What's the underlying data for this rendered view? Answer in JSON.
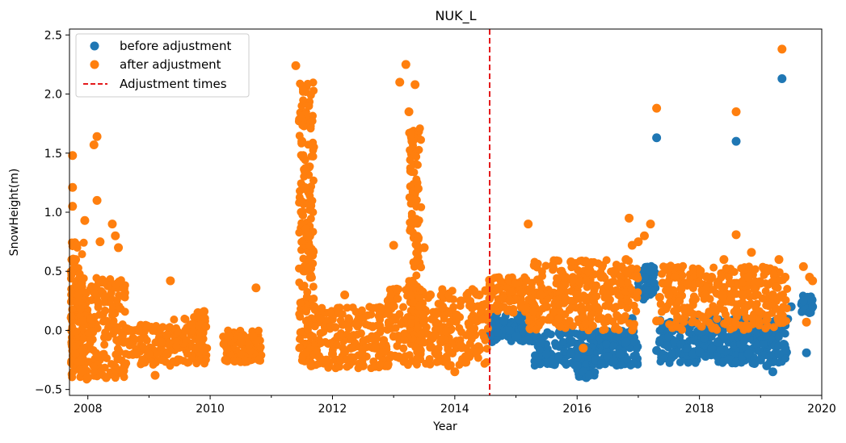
{
  "chart_data": {
    "type": "scatter",
    "title": "NUK_L",
    "xlabel": "Year",
    "ylabel": "SnowHeight(m)",
    "xlim": [
      2007.7,
      2020.0
    ],
    "ylim": [
      -0.55,
      2.55
    ],
    "x_ticks": [
      2008,
      2010,
      2012,
      2014,
      2016,
      2018,
      2020
    ],
    "x_tick_labels": [
      "2008",
      "2010",
      "2012",
      "2014",
      "2016",
      "2018",
      "2020"
    ],
    "y_ticks": [
      -0.5,
      0.0,
      0.5,
      1.0,
      1.5,
      2.0,
      2.5
    ],
    "y_tick_labels": [
      "−0.5",
      "0.0",
      "0.5",
      "1.0",
      "1.5",
      "2.0",
      "2.5"
    ],
    "legend_position": "top-left",
    "grid": false,
    "series": [
      {
        "name": "before adjustment",
        "color": "#1f77b4",
        "marker": "circle",
        "points": [
          [
            2014.6,
            0.05
          ],
          [
            2014.7,
            -0.02
          ],
          [
            2014.8,
            0.08
          ],
          [
            2014.9,
            0.0
          ],
          [
            2015.0,
            -0.05
          ],
          [
            2015.1,
            0.02
          ],
          [
            2015.2,
            -0.08
          ],
          [
            2015.3,
            0.05
          ],
          [
            2015.4,
            -0.1
          ],
          [
            2015.5,
            -0.2
          ],
          [
            2015.6,
            -0.25
          ],
          [
            2015.7,
            -0.22
          ],
          [
            2015.8,
            -0.27
          ],
          [
            2015.9,
            -0.2
          ],
          [
            2016.0,
            -0.3
          ],
          [
            2016.1,
            -0.35
          ],
          [
            2016.15,
            -0.4
          ],
          [
            2016.2,
            -0.38
          ],
          [
            2016.3,
            -0.25
          ],
          [
            2016.4,
            -0.28
          ],
          [
            2016.5,
            -0.22
          ],
          [
            2016.6,
            -0.26
          ],
          [
            2016.7,
            -0.2
          ],
          [
            2016.8,
            -0.1
          ],
          [
            2016.9,
            0.1
          ],
          [
            2017.0,
            0.35
          ],
          [
            2017.1,
            0.45
          ],
          [
            2017.2,
            0.5
          ],
          [
            2017.3,
            1.63
          ],
          [
            2017.3,
            -0.17
          ],
          [
            2017.35,
            -0.1
          ],
          [
            2017.5,
            -0.05
          ],
          [
            2017.6,
            -0.1
          ],
          [
            2017.7,
            -0.12
          ],
          [
            2017.8,
            -0.15
          ],
          [
            2017.9,
            -0.2
          ],
          [
            2018.0,
            -0.18
          ],
          [
            2018.1,
            -0.22
          ],
          [
            2018.2,
            -0.15
          ],
          [
            2018.3,
            -0.1
          ],
          [
            2018.4,
            -0.05
          ],
          [
            2018.5,
            -0.25
          ],
          [
            2018.6,
            -0.27
          ],
          [
            2018.6,
            1.6
          ],
          [
            2018.7,
            -0.22
          ],
          [
            2018.8,
            -0.2
          ],
          [
            2018.9,
            -0.28
          ],
          [
            2019.0,
            -0.25
          ],
          [
            2019.1,
            -0.3
          ],
          [
            2019.2,
            -0.35
          ],
          [
            2019.3,
            -0.2
          ],
          [
            2019.35,
            2.13
          ],
          [
            2019.4,
            0.1
          ],
          [
            2019.5,
            0.2
          ],
          [
            2019.7,
            0.25
          ],
          [
            2019.75,
            0.18
          ],
          [
            2019.75,
            -0.19
          ],
          [
            2019.8,
            0.15
          ],
          [
            2019.85,
            0.2
          ]
        ]
      },
      {
        "name": "after adjustment",
        "color": "#ff7f0e",
        "marker": "circle",
        "points": [
          [
            2007.75,
            1.48
          ],
          [
            2007.75,
            1.21
          ],
          [
            2007.75,
            1.05
          ],
          [
            2007.8,
            0.6
          ],
          [
            2007.85,
            0.3
          ],
          [
            2007.9,
            -0.35
          ],
          [
            2007.95,
            0.93
          ],
          [
            2008.0,
            -0.4
          ],
          [
            2008.05,
            0.1
          ],
          [
            2008.1,
            1.57
          ],
          [
            2008.15,
            1.64
          ],
          [
            2008.15,
            1.1
          ],
          [
            2008.2,
            0.75
          ],
          [
            2008.3,
            -0.4
          ],
          [
            2008.4,
            0.9
          ],
          [
            2008.45,
            0.8
          ],
          [
            2008.5,
            0.7
          ],
          [
            2008.6,
            -0.3
          ],
          [
            2008.7,
            0.0
          ],
          [
            2008.8,
            -0.2
          ],
          [
            2008.9,
            -0.25
          ],
          [
            2009.0,
            -0.2
          ],
          [
            2009.1,
            -0.38
          ],
          [
            2009.2,
            -0.1
          ],
          [
            2009.3,
            -0.2
          ],
          [
            2009.35,
            0.42
          ],
          [
            2009.5,
            -0.25
          ],
          [
            2009.6,
            0.0
          ],
          [
            2009.7,
            0.05
          ],
          [
            2009.8,
            0.15
          ],
          [
            2009.9,
            0.16
          ],
          [
            2010.25,
            -0.25
          ],
          [
            2010.3,
            -0.05
          ],
          [
            2010.4,
            -0.26
          ],
          [
            2010.5,
            -0.1
          ],
          [
            2010.7,
            -0.05
          ],
          [
            2010.75,
            0.36
          ],
          [
            2010.8,
            -0.25
          ],
          [
            2011.4,
            2.24
          ],
          [
            2011.5,
            1.6
          ],
          [
            2011.55,
            1.2
          ],
          [
            2011.6,
            0.8
          ],
          [
            2011.65,
            -0.3
          ],
          [
            2011.7,
            0.2
          ],
          [
            2011.8,
            0.1
          ],
          [
            2011.9,
            -0.25
          ],
          [
            2012.0,
            -0.2
          ],
          [
            2012.1,
            0.15
          ],
          [
            2012.2,
            0.3
          ],
          [
            2012.3,
            -0.15
          ],
          [
            2012.5,
            -0.3
          ],
          [
            2012.7,
            -0.15
          ],
          [
            2012.9,
            -0.3
          ],
          [
            2013.0,
            0.72
          ],
          [
            2013.05,
            0.35
          ],
          [
            2013.1,
            2.1
          ],
          [
            2013.2,
            2.25
          ],
          [
            2013.25,
            1.85
          ],
          [
            2013.3,
            1.6
          ],
          [
            2013.35,
            2.08
          ],
          [
            2013.4,
            1.2
          ],
          [
            2013.5,
            0.7
          ],
          [
            2013.6,
            0.3
          ],
          [
            2013.7,
            -0.2
          ],
          [
            2013.8,
            0.2
          ],
          [
            2013.9,
            -0.3
          ],
          [
            2014.0,
            -0.35
          ],
          [
            2014.1,
            0.25
          ],
          [
            2014.2,
            0.3
          ],
          [
            2014.3,
            0.2
          ],
          [
            2014.4,
            0.3
          ],
          [
            2014.5,
            0.22
          ],
          [
            2014.6,
            0.3
          ],
          [
            2014.7,
            0.35
          ],
          [
            2014.8,
            0.27
          ],
          [
            2014.9,
            0.25
          ],
          [
            2015.0,
            0.4
          ],
          [
            2015.1,
            0.32
          ],
          [
            2015.2,
            0.9
          ],
          [
            2015.3,
            0.55
          ],
          [
            2015.4,
            0.3
          ],
          [
            2015.5,
            0.2
          ],
          [
            2015.6,
            0.55
          ],
          [
            2015.7,
            0.1
          ],
          [
            2015.8,
            0.45
          ],
          [
            2015.9,
            0.58
          ],
          [
            2016.0,
            0.3
          ],
          [
            2016.1,
            -0.15
          ],
          [
            2016.2,
            0.55
          ],
          [
            2016.3,
            0.2
          ],
          [
            2016.4,
            0.1
          ],
          [
            2016.5,
            0.3
          ],
          [
            2016.6,
            0.5
          ],
          [
            2016.7,
            0.4
          ],
          [
            2016.8,
            0.6
          ],
          [
            2016.85,
            0.95
          ],
          [
            2016.9,
            0.72
          ],
          [
            2017.0,
            0.75
          ],
          [
            2017.1,
            0.8
          ],
          [
            2017.2,
            0.9
          ],
          [
            2017.3,
            1.88
          ],
          [
            2017.3,
            0.08
          ],
          [
            2017.35,
            0.28
          ],
          [
            2017.4,
            0.4
          ],
          [
            2017.5,
            0.3
          ],
          [
            2017.6,
            0.45
          ],
          [
            2017.7,
            0.35
          ],
          [
            2017.8,
            0.4
          ],
          [
            2017.9,
            0.25
          ],
          [
            2018.0,
            0.4
          ],
          [
            2018.1,
            0.3
          ],
          [
            2018.2,
            0.45
          ],
          [
            2018.3,
            0.4
          ],
          [
            2018.4,
            0.6
          ],
          [
            2018.5,
            0.4
          ],
          [
            2018.6,
            1.85
          ],
          [
            2018.6,
            0.81
          ],
          [
            2018.7,
            0.3
          ],
          [
            2018.8,
            0.45
          ],
          [
            2018.85,
            0.66
          ],
          [
            2018.9,
            0.35
          ],
          [
            2019.0,
            0.4
          ],
          [
            2019.1,
            0.5
          ],
          [
            2019.2,
            0.3
          ],
          [
            2019.3,
            0.6
          ],
          [
            2019.35,
            2.38
          ],
          [
            2019.4,
            0.45
          ],
          [
            2019.7,
            0.54
          ],
          [
            2019.75,
            0.07
          ],
          [
            2019.8,
            0.45
          ],
          [
            2019.85,
            0.42
          ]
        ],
        "dense_bands": [
          {
            "x": [
              2007.72,
              2008.62
            ],
            "y": [
              -0.42,
              0.45
            ]
          },
          {
            "x": [
              2007.72,
              2007.95
            ],
            "y": [
              -0.4,
              0.75
            ]
          },
          {
            "x": [
              2008.62,
              2009.4
            ],
            "y": [
              -0.3,
              0.05
            ]
          },
          {
            "x": [
              2009.4,
              2009.95
            ],
            "y": [
              -0.28,
              0.12
            ]
          },
          {
            "x": [
              2010.2,
              2010.85
            ],
            "y": [
              -0.27,
              0.0
            ]
          },
          {
            "x": [
              2011.45,
              2011.7
            ],
            "y": [
              -0.3,
              2.15
            ]
          },
          {
            "x": [
              2011.7,
              2012.9
            ],
            "y": [
              -0.32,
              0.2
            ]
          },
          {
            "x": [
              2013.25,
              2013.45
            ],
            "y": [
              -0.25,
              1.75
            ]
          },
          {
            "x": [
              2012.9,
              2014.55
            ],
            "y": [
              -0.3,
              0.35
            ]
          },
          {
            "x": [
              2014.55,
              2015.2
            ],
            "y": [
              0.15,
              0.45
            ]
          },
          {
            "x": [
              2015.2,
              2017.0
            ],
            "y": [
              0.0,
              0.6
            ]
          },
          {
            "x": [
              2017.35,
              2019.45
            ],
            "y": [
              0.0,
              0.55
            ]
          }
        ]
      }
    ],
    "blue_dense_bands": [
      {
        "x": [
          2014.55,
          2015.3
        ],
        "y": [
          -0.1,
          0.15
        ]
      },
      {
        "x": [
          2015.3,
          2017.0
        ],
        "y": [
          -0.3,
          0.0
        ]
      },
      {
        "x": [
          2016.0,
          2016.3
        ],
        "y": [
          -0.4,
          -0.1
        ]
      },
      {
        "x": [
          2017.35,
          2019.45
        ],
        "y": [
          -0.28,
          0.1
        ]
      },
      {
        "x": [
          2017.0,
          2017.3
        ],
        "y": [
          0.25,
          0.55
        ]
      },
      {
        "x": [
          2019.65,
          2019.85
        ],
        "y": [
          0.15,
          0.3
        ]
      }
    ],
    "vlines": [
      {
        "name": "Adjustment times",
        "x": 2014.57,
        "color": "#e41a1c",
        "style": "dashed"
      }
    ]
  }
}
